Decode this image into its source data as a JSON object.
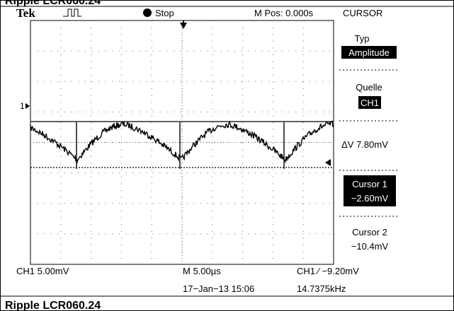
{
  "caption_top": "Ripple LCR060.24",
  "header": {
    "brand": "Tek",
    "status": "Stop",
    "position": "M Pos: 0.000s",
    "menu_title": "CURSOR"
  },
  "screen": {
    "channel_marker": "1"
  },
  "menu": [
    {
      "label": "Typ",
      "value": "Amplitude"
    },
    {
      "label": "Quelle",
      "value": "CH1"
    },
    {
      "label": "ΔV 7.80mV"
    },
    {
      "label": "Cursor 1",
      "value": "−2.60mV"
    },
    {
      "label": "Cursor 2",
      "value": "−10.4mV"
    }
  ],
  "footer": {
    "channel_scale": "CH1  5.00mV",
    "timebase": "M 5.00µs",
    "trigger": "CH1 ∕ −9.20mV",
    "datetime": "17−Jan−13 15:06",
    "frequency": "14.7375kHz"
  },
  "caption_bottom": "Ripple LCR060.24"
}
